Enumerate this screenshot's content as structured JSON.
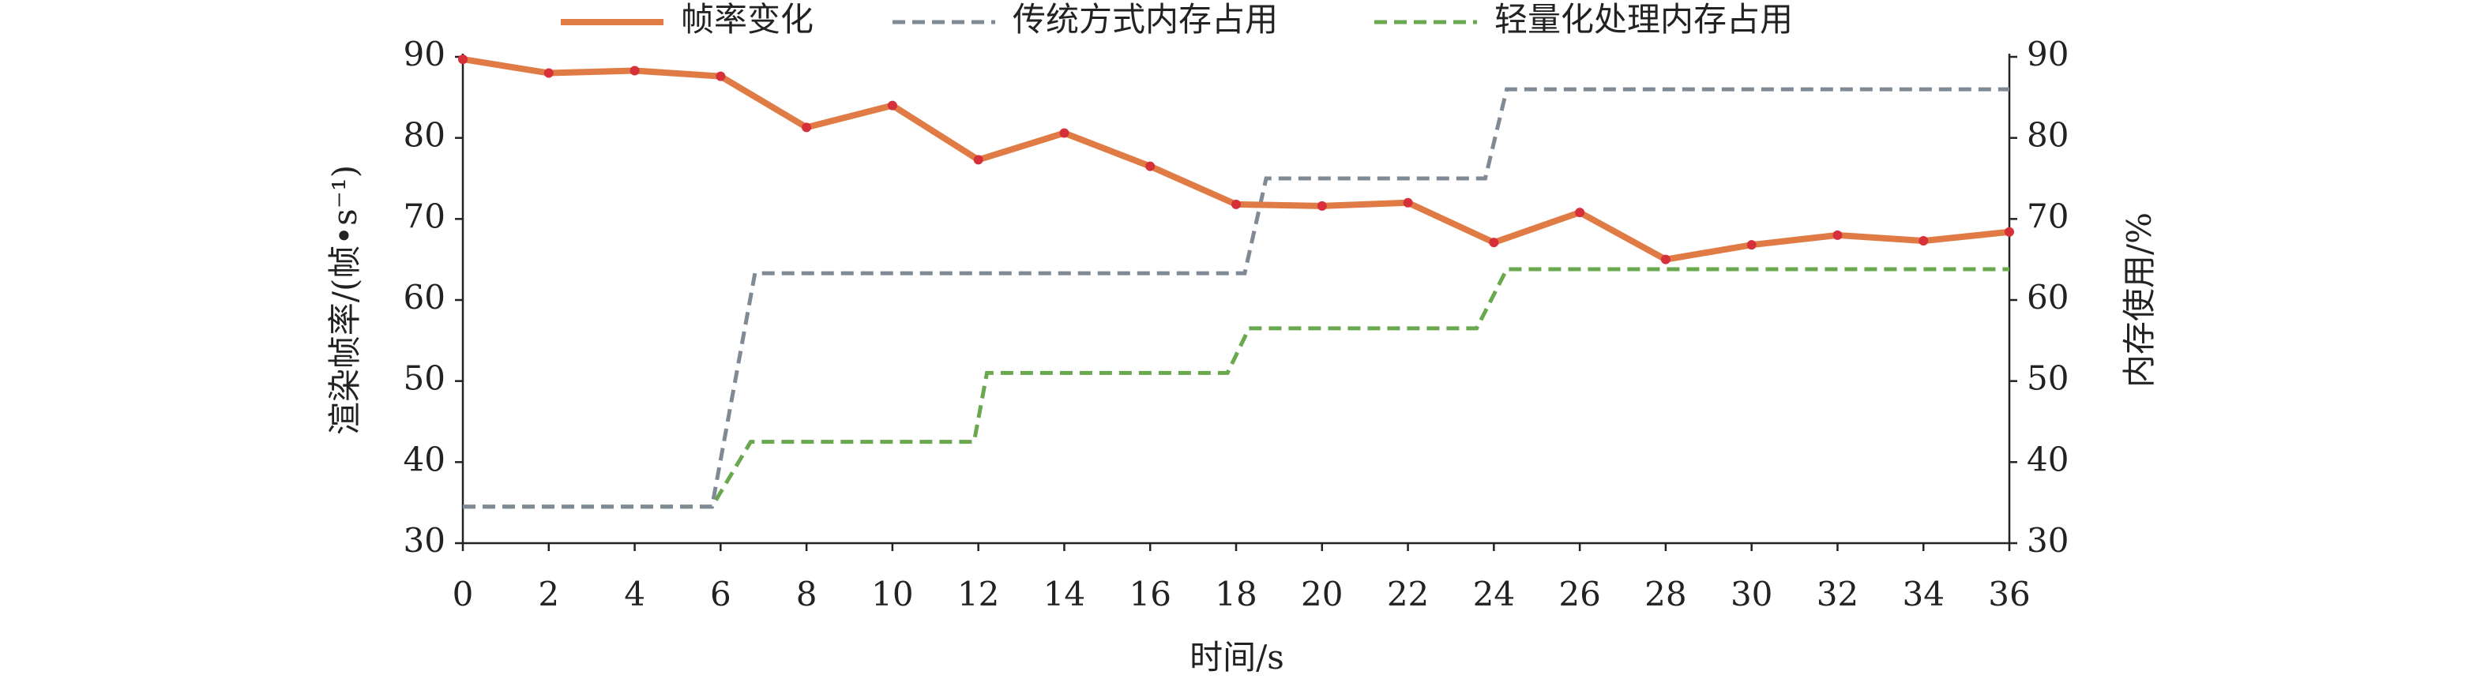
{
  "chart_data": {
    "type": "line",
    "xlabel": "时间/s",
    "ylabel": "渲染帧率/(帧•s⁻¹)",
    "y2label": "内存使用/%",
    "xlim": [
      0,
      36
    ],
    "xticks": [
      0,
      2,
      4,
      6,
      8,
      10,
      12,
      14,
      16,
      18,
      20,
      22,
      24,
      26,
      28,
      30,
      32,
      34,
      36
    ],
    "ylim": [
      30,
      90
    ],
    "yticks": [
      30,
      40,
      50,
      60,
      70,
      80,
      90
    ],
    "y2lim": [
      30,
      90
    ],
    "y2ticks": [
      30,
      40,
      50,
      60,
      70,
      80,
      90
    ],
    "series": [
      {
        "name": "帧率变化",
        "color": "#e07b45",
        "marker_color": "#d6303a",
        "markers": true,
        "x": [
          0,
          2,
          4,
          6,
          8,
          10,
          12,
          14,
          16,
          18,
          20,
          22,
          24,
          26,
          28,
          30,
          32,
          34,
          36
        ],
        "values": [
          89.7,
          88,
          88.3,
          87.6,
          81.3,
          84,
          77.3,
          80.6,
          76.5,
          71.8,
          71.6,
          72,
          67.1,
          70.8,
          65,
          66.8,
          68,
          67.3,
          68.4
        ]
      },
      {
        "name": "传统方式内存占用",
        "color": "#7f8a95",
        "dashed": true,
        "axis": "y2",
        "x": [
          0,
          5.8,
          6.8,
          18.2,
          18.7,
          23.8,
          24.3,
          36
        ],
        "values": [
          34.5,
          34.5,
          63.3,
          63.3,
          75,
          75,
          86,
          86
        ]
      },
      {
        "name": "轻量化处理内存占用",
        "color": "#6aa84f",
        "dashed": true,
        "axis": "y2",
        "x": [
          0,
          5.8,
          6.7,
          11.9,
          12.2,
          17.8,
          18.3,
          23.6,
          24.3,
          36
        ],
        "values": [
          34.5,
          34.5,
          42.5,
          42.5,
          51,
          51,
          56.5,
          56.5,
          63.8,
          63.8
        ]
      }
    ]
  }
}
